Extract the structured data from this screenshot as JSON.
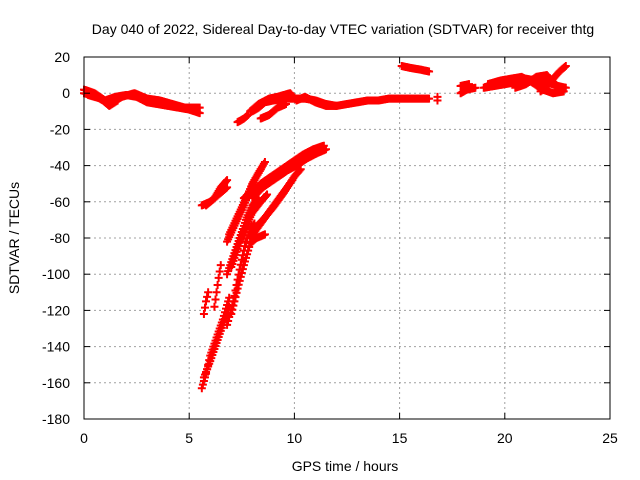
{
  "chart_data": {
    "type": "scatter",
    "title": "Day 040 of 2022, Sidereal Day-to-day VTEC variation (SDTVAR) for receiver thtg",
    "xlabel": "GPS time / hours",
    "ylabel": "SDTVAR / TECUs",
    "xlim": [
      0,
      25
    ],
    "ylim": [
      -180,
      20
    ],
    "xticks": [
      0,
      5,
      10,
      15,
      20,
      25
    ],
    "yticks": [
      -180,
      -160,
      -140,
      -120,
      -100,
      -80,
      -60,
      -40,
      -20,
      0,
      20
    ],
    "grid": true,
    "marker": "plus",
    "color": "#ff0000",
    "tracks": [
      [
        [
          0.0,
          0
        ],
        [
          0.6,
          -2
        ],
        [
          1.2,
          -6
        ],
        [
          1.8,
          -2
        ],
        [
          2.4,
          0
        ],
        [
          3.0,
          -3
        ],
        [
          3.6,
          -4
        ],
        [
          4.2,
          -6
        ],
        [
          4.8,
          -8
        ],
        [
          5.5,
          -8
        ]
      ],
      [
        [
          0.0,
          2
        ],
        [
          0.5,
          0
        ],
        [
          1.0,
          -4
        ],
        [
          1.5,
          -2
        ],
        [
          2.0,
          -1
        ],
        [
          2.5,
          -2
        ],
        [
          3.0,
          -5
        ],
        [
          3.5,
          -6
        ],
        [
          4.0,
          -7
        ],
        [
          4.5,
          -8
        ],
        [
          5.0,
          -9
        ],
        [
          5.5,
          -11
        ]
      ],
      [
        [
          0.2,
          -1
        ],
        [
          0.8,
          -3
        ],
        [
          1.2,
          -7
        ],
        [
          1.6,
          -4
        ]
      ],
      [
        [
          7.3,
          -16
        ],
        [
          7.6,
          -14
        ],
        [
          7.8,
          -12
        ]
      ],
      [
        [
          8.0,
          -10
        ],
        [
          8.3,
          -8
        ],
        [
          8.6,
          -5
        ],
        [
          9.0,
          -4
        ],
        [
          9.5,
          -3
        ],
        [
          10.0,
          -3
        ],
        [
          10.5,
          -3
        ],
        [
          11.0,
          -4
        ],
        [
          11.5,
          -6
        ],
        [
          12.0,
          -7
        ],
        [
          12.5,
          -6
        ],
        [
          13.0,
          -5
        ],
        [
          13.5,
          -4
        ],
        [
          14.0,
          -4
        ],
        [
          14.5,
          -3
        ],
        [
          15.0,
          -3
        ],
        [
          15.5,
          -3
        ],
        [
          16.0,
          -3
        ],
        [
          16.4,
          -3
        ]
      ],
      [
        [
          7.9,
          -10
        ],
        [
          8.3,
          -6
        ],
        [
          8.8,
          -3
        ],
        [
          9.2,
          -2
        ],
        [
          9.8,
          0
        ],
        [
          10.1,
          -4
        ],
        [
          10.5,
          -2
        ],
        [
          11.0,
          -5
        ],
        [
          11.5,
          -7
        ],
        [
          12.0,
          -7
        ]
      ],
      [
        [
          8.4,
          -14
        ],
        [
          8.8,
          -12
        ],
        [
          9.2,
          -8
        ],
        [
          9.6,
          -6
        ]
      ],
      [
        [
          15.1,
          15
        ],
        [
          15.5,
          14
        ],
        [
          16.0,
          13
        ],
        [
          16.4,
          12
        ]
      ],
      [
        [
          16.8,
          -2
        ],
        [
          16.8,
          -4
        ]
      ],
      [
        [
          17.9,
          0
        ],
        [
          18.2,
          2
        ],
        [
          18.6,
          3
        ]
      ],
      [
        [
          17.9,
          4
        ],
        [
          18.3,
          5
        ]
      ],
      [
        [
          19.0,
          3
        ],
        [
          19.5,
          4
        ],
        [
          20.0,
          5
        ],
        [
          20.5,
          6
        ],
        [
          21.0,
          8
        ],
        [
          21.5,
          7
        ],
        [
          22.0,
          6
        ],
        [
          22.5,
          4
        ],
        [
          22.9,
          3
        ]
      ],
      [
        [
          19.2,
          5
        ],
        [
          19.8,
          7
        ],
        [
          20.3,
          8
        ],
        [
          20.8,
          9
        ],
        [
          21.3,
          6
        ],
        [
          21.8,
          2
        ],
        [
          22.3,
          0
        ],
        [
          22.8,
          1
        ]
      ],
      [
        [
          20.5,
          3
        ],
        [
          21.0,
          5
        ],
        [
          21.5,
          9
        ],
        [
          22.0,
          10
        ],
        [
          22.3,
          6
        ],
        [
          22.6,
          3
        ]
      ],
      [
        [
          21.7,
          1
        ],
        [
          22.0,
          4
        ],
        [
          22.3,
          8
        ],
        [
          22.6,
          12
        ],
        [
          22.9,
          15
        ]
      ],
      [
        [
          5.6,
          -62
        ],
        [
          6.0,
          -60
        ],
        [
          6.4,
          -56
        ],
        [
          6.8,
          -52
        ]
      ],
      [
        [
          5.8,
          -62
        ],
        [
          6.2,
          -58
        ],
        [
          6.5,
          -52
        ],
        [
          6.8,
          -48
        ]
      ],
      [
        [
          6.2,
          -118
        ],
        [
          6.3,
          -110
        ],
        [
          6.4,
          -102
        ],
        [
          6.5,
          -95
        ]
      ],
      [
        [
          5.7,
          -122
        ],
        [
          5.8,
          -115
        ],
        [
          5.9,
          -110
        ]
      ],
      [
        [
          5.6,
          -163
        ],
        [
          5.8,
          -155
        ],
        [
          6.0,
          -145
        ],
        [
          6.3,
          -135
        ],
        [
          6.6,
          -125
        ],
        [
          6.9,
          -113
        ]
      ],
      [
        [
          5.7,
          -157
        ],
        [
          6.0,
          -148
        ],
        [
          6.3,
          -138
        ],
        [
          6.6,
          -128
        ],
        [
          6.9,
          -118
        ]
      ],
      [
        [
          6.8,
          -128
        ],
        [
          7.1,
          -115
        ],
        [
          7.3,
          -103
        ],
        [
          7.5,
          -92
        ],
        [
          7.7,
          -82
        ],
        [
          7.9,
          -75
        ],
        [
          8.1,
          -72
        ]
      ],
      [
        [
          7.0,
          -122
        ],
        [
          7.3,
          -108
        ],
        [
          7.6,
          -95
        ],
        [
          7.9,
          -83
        ],
        [
          8.2,
          -80
        ],
        [
          8.6,
          -78
        ]
      ],
      [
        [
          6.8,
          -100
        ],
        [
          7.1,
          -90
        ],
        [
          7.4,
          -80
        ],
        [
          7.7,
          -70
        ],
        [
          8.0,
          -62
        ],
        [
          8.3,
          -58
        ]
      ],
      [
        [
          7.0,
          -96
        ],
        [
          7.3,
          -86
        ],
        [
          7.6,
          -76
        ],
        [
          8.0,
          -66
        ],
        [
          8.4,
          -60
        ],
        [
          8.7,
          -56
        ]
      ],
      [
        [
          6.8,
          -82
        ],
        [
          7.2,
          -72
        ],
        [
          7.6,
          -62
        ],
        [
          8.0,
          -50
        ],
        [
          8.3,
          -44
        ],
        [
          8.6,
          -38
        ]
      ],
      [
        [
          6.9,
          -78
        ],
        [
          7.3,
          -68
        ],
        [
          7.7,
          -58
        ],
        [
          8.1,
          -48
        ],
        [
          8.4,
          -42
        ]
      ],
      [
        [
          7.6,
          -58
        ],
        [
          8.1,
          -53
        ],
        [
          8.6,
          -50
        ],
        [
          9.1,
          -47
        ],
        [
          9.6,
          -43
        ],
        [
          10.1,
          -40
        ],
        [
          10.6,
          -36
        ],
        [
          11.1,
          -33
        ],
        [
          11.5,
          -31
        ]
      ],
      [
        [
          7.9,
          -56
        ],
        [
          8.4,
          -50
        ],
        [
          8.9,
          -46
        ],
        [
          9.4,
          -42
        ],
        [
          9.9,
          -38
        ],
        [
          10.4,
          -34
        ],
        [
          10.9,
          -31
        ],
        [
          11.4,
          -29
        ]
      ],
      [
        [
          8.0,
          -58
        ],
        [
          8.5,
          -52
        ],
        [
          9.0,
          -48
        ],
        [
          9.5,
          -44
        ],
        [
          10.0,
          -40
        ],
        [
          10.5,
          -36
        ],
        [
          11.0,
          -33
        ]
      ],
      [
        [
          8.0,
          -76
        ],
        [
          8.5,
          -70
        ],
        [
          9.0,
          -63
        ],
        [
          9.5,
          -55
        ],
        [
          10.0,
          -46
        ],
        [
          10.3,
          -42
        ]
      ],
      [
        [
          7.9,
          -80
        ],
        [
          8.4,
          -72
        ],
        [
          8.9,
          -64
        ],
        [
          9.4,
          -56
        ],
        [
          9.9,
          -48
        ]
      ]
    ]
  }
}
